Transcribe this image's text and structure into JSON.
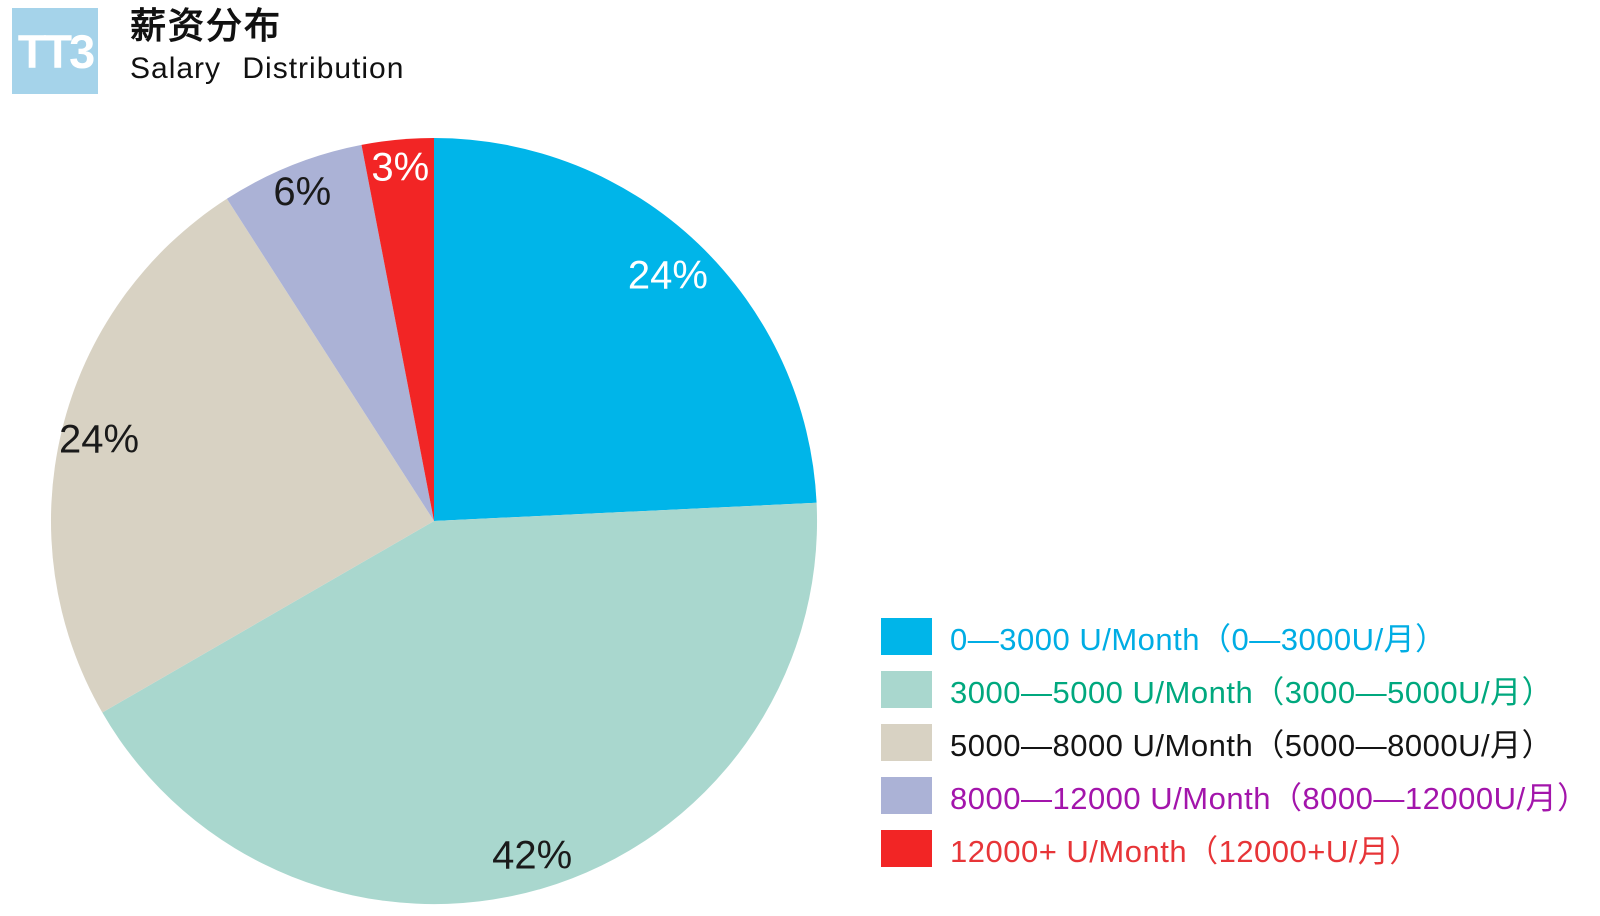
{
  "logo": {
    "text": "TT3",
    "bg_color": "#a5d3ea",
    "text_color": "#ffffff"
  },
  "header": {
    "title_zh": "薪资分布",
    "title_en": "Salary Distribution"
  },
  "chart_data": {
    "type": "pie",
    "title": "薪资分布 Salary Distribution",
    "legend_position": "right",
    "values_sum_shown": 99,
    "slices": [
      {
        "legend": "0—3000 U/Month（0—3000U/月）",
        "value": 24,
        "pct_label": "24%",
        "color": "#00b5e9",
        "legend_text_color": "#00ade4",
        "pct_label_color": "#ffffff"
      },
      {
        "legend": "3000—5000 U/Month（3000—5000U/月）",
        "value": 42,
        "pct_label": "42%",
        "color": "#a9d7ce",
        "legend_text_color": "#00a87e",
        "pct_label_color": "#1a1a1a"
      },
      {
        "legend": "5000—8000 U/Month（5000—8000U/月）",
        "value": 24,
        "pct_label": "24%",
        "color": "#d8d2c3",
        "legend_text_color": "#141414",
        "pct_label_color": "#1a1a1a"
      },
      {
        "legend": "8000—12000 U/Month（8000—12000U/月）",
        "value": 6,
        "pct_label": "6%",
        "color": "#abb2d6",
        "legend_text_color": "#a315ab",
        "pct_label_color": "#1a1a1a"
      },
      {
        "legend": "12000+ U/Month（12000+U/月）",
        "value": 3,
        "pct_label": "3%",
        "color": "#f22525",
        "legend_text_color": "#e73538",
        "pct_label_color": "#ffffff"
      }
    ]
  }
}
